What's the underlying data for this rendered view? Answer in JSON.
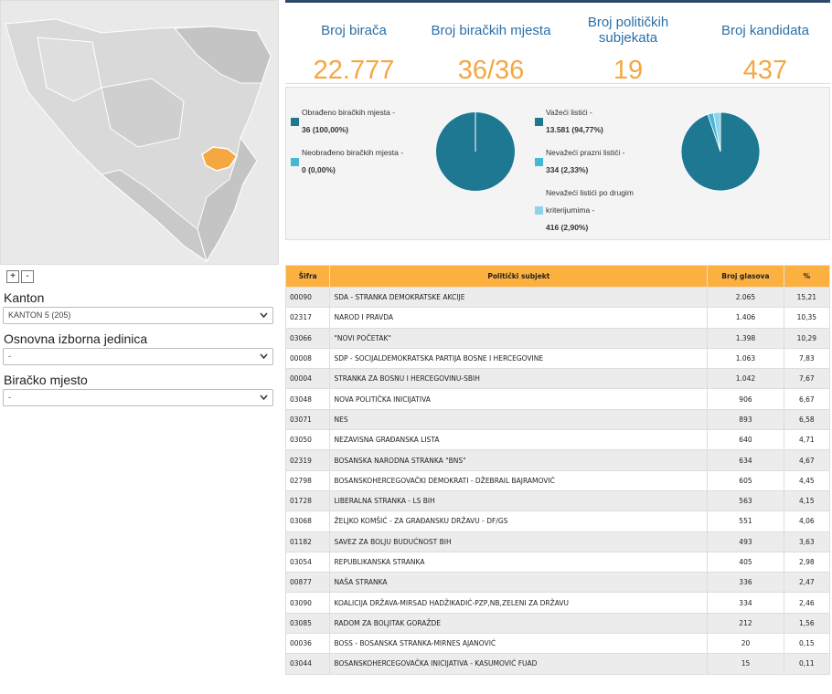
{
  "map": {
    "zoom_in": "+",
    "zoom_out": "-",
    "highlight_color": "#f5a742"
  },
  "filters": [
    {
      "label": "Kanton",
      "selected": "KANTON 5 (205)"
    },
    {
      "label": "Osnovna izborna jedinica",
      "selected": "-"
    },
    {
      "label": "Biračko mjesto",
      "selected": "-"
    }
  ],
  "stats": [
    {
      "label": "Broj birača",
      "value": "22.777"
    },
    {
      "label": "Broj biračkih mjesta",
      "value": "36/36"
    },
    {
      "label": "Broj političkih subjekata",
      "value": "19"
    },
    {
      "label": "Broj kandidata",
      "value": "437"
    }
  ],
  "pies": [
    {
      "items": [
        {
          "name": "Obrađeno biračkih mjesta -",
          "value_label": "36 (100,00%)",
          "share": 100,
          "color": "#1f7892"
        },
        {
          "name": "Neobrađeno biračkih mjesta -",
          "value_label": "0 (0,00%)",
          "share": 0,
          "color": "#45b8d6"
        }
      ]
    },
    {
      "items": [
        {
          "name": "Važeći listići -",
          "value_label": "13.581 (94,77%)",
          "share": 94.77,
          "color": "#1f7892"
        },
        {
          "name": "Nevažeći prazni listići -",
          "value_label": "334 (2,33%)",
          "share": 2.33,
          "color": "#45b8d6"
        },
        {
          "name": "Nevažeći listići po drugim kriterijumima -",
          "value_label": "416 (2,90%)",
          "share": 2.9,
          "color": "#8fd3ea"
        }
      ]
    }
  ],
  "table": {
    "columns": [
      "Šifra",
      "Politički subjekt",
      "Broj glasova",
      "%"
    ],
    "rows": [
      [
        "00090",
        "SDA - STRANKA DEMOKRATSKE AKCIJE",
        "2.065",
        "15,21"
      ],
      [
        "02317",
        "NAROD I PRAVDA",
        "1.406",
        "10,35"
      ],
      [
        "03066",
        "\"NOVI POČETAK\"",
        "1.398",
        "10,29"
      ],
      [
        "00008",
        "SDP - SOCIJALDEMOKRATSKA PARTIJA BOSNE I HERCEGOVINE",
        "1.063",
        "7,83"
      ],
      [
        "00004",
        "STRANKA ZA BOSNU I HERCEGOVINU-SBIH",
        "1.042",
        "7,67"
      ],
      [
        "03048",
        "NOVA POLITIČKA INICIJATIVA",
        "906",
        "6,67"
      ],
      [
        "03071",
        "NES",
        "893",
        "6,58"
      ],
      [
        "03050",
        "NEZAVISNA GRAĐANSKA LISTA",
        "640",
        "4,71"
      ],
      [
        "02319",
        "BOSANSKA NARODNA STRANKA \"BNS\"",
        "634",
        "4,67"
      ],
      [
        "02798",
        "BOSANSKOHERCEGOVAČKI DEMOKRATI - DŽEBRAIL BAJRAMOVIĆ",
        "605",
        "4,45"
      ],
      [
        "01728",
        "LIBERALNA STRANKA - LS BIH",
        "563",
        "4,15"
      ],
      [
        "03068",
        "ŽELJKO KOMŠIĆ - ZA GRAĐANSKU DRŽAVU - DF/GS",
        "551",
        "4,06"
      ],
      [
        "01182",
        "SAVEZ ZA BOLJU BUDUĆNOST BIH",
        "493",
        "3,63"
      ],
      [
        "03054",
        "REPUBLIKANSKA STRANKA",
        "405",
        "2,98"
      ],
      [
        "00877",
        "NAŠA STRANKA",
        "336",
        "2,47"
      ],
      [
        "03090",
        "KOALICIJA DRŽAVA-MIRSAD HADŽIKADIĆ-PZP,NB,ZELENI ZA DRŽAVU",
        "334",
        "2,46"
      ],
      [
        "03085",
        "RADOM ZA BOLJITAK GORAŽDE",
        "212",
        "1,56"
      ],
      [
        "00036",
        "BOSS - BOSANSKA STRANKA-MIRNES AJANOVIĆ",
        "20",
        "0,15"
      ],
      [
        "03044",
        "BOSANSKOHERCEGOVAČKA INICIJATIVA - KASUMOVIĆ FUAD",
        "15",
        "0,11"
      ]
    ]
  }
}
